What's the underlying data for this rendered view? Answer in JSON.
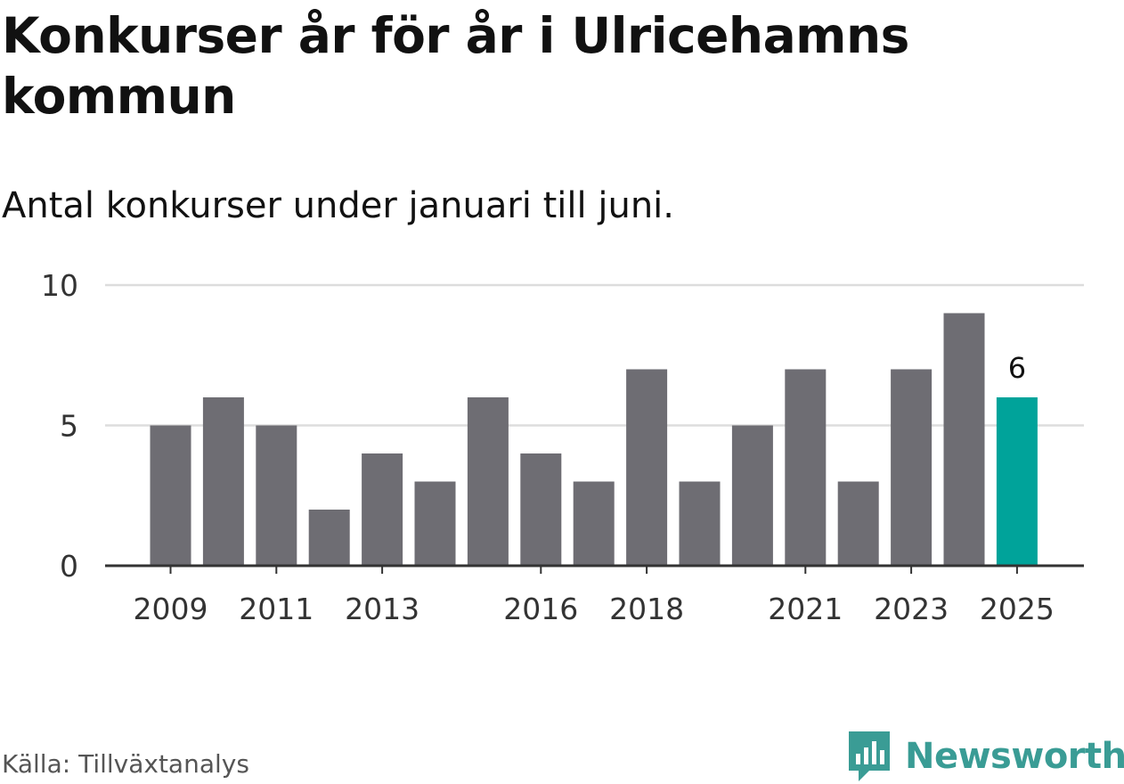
{
  "header": {
    "title": "Konkurser år för år i Ulricehamns kommun",
    "subtitle": "Antal konkurser under januari till juni."
  },
  "footer": {
    "source": "Källa: Tillväxtanalys",
    "brand": "Newsworthy"
  },
  "colors": {
    "bar": "#6e6d73",
    "highlight": "#00a39a",
    "grid": "#dddddd",
    "axis": "#333333",
    "brand": "#3a9c95"
  },
  "chart_data": {
    "type": "bar",
    "categories": [
      "2009",
      "2010",
      "2011",
      "2012",
      "2013",
      "2014",
      "2015",
      "2016",
      "2017",
      "2018",
      "2019",
      "2020",
      "2021",
      "2022",
      "2023",
      "2024",
      "2025"
    ],
    "values": [
      5,
      6,
      5,
      2,
      4,
      3,
      6,
      4,
      3,
      7,
      3,
      5,
      7,
      3,
      7,
      9,
      6
    ],
    "x_tick_labels": [
      "2009",
      "2011",
      "2013",
      "2016",
      "2018",
      "2021",
      "2023",
      "2025"
    ],
    "y_ticks": [
      0,
      5,
      10
    ],
    "ylim": [
      0,
      10
    ],
    "highlight_category": "2025",
    "highlight_label": "6",
    "grid": true,
    "legend": "none"
  }
}
